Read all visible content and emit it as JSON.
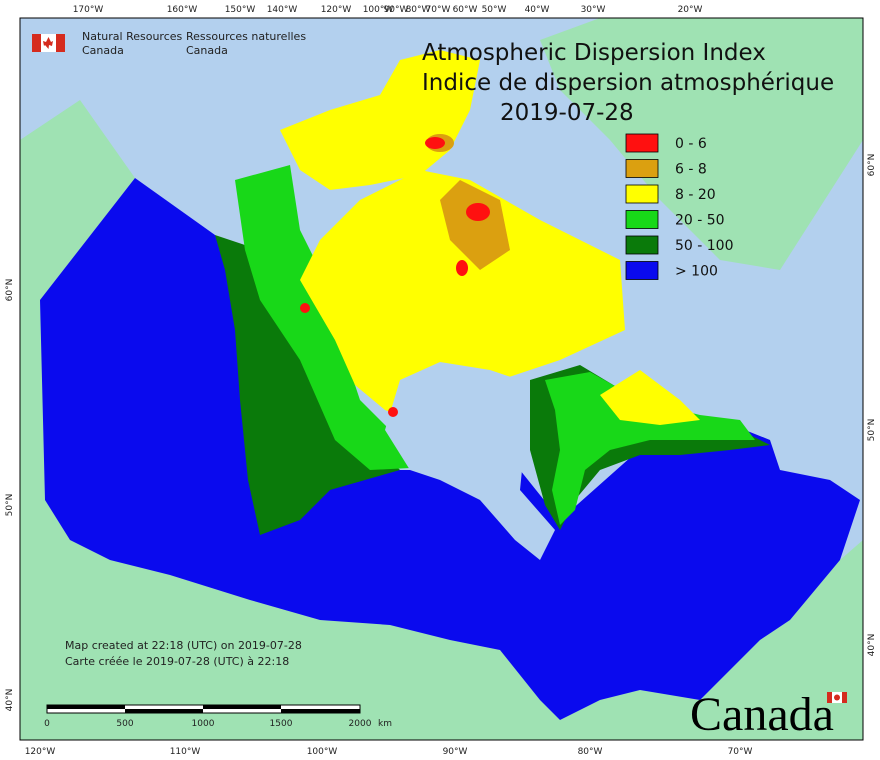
{
  "header": {
    "agency_en": [
      "Natural Resources",
      "Canada"
    ],
    "agency_fr": [
      "Ressources naturelles",
      "Canada"
    ]
  },
  "title": [
    "Atmospheric Dispersion Index",
    "Indice de dispersion atmosphérique"
  ],
  "date": "2019-07-28",
  "legend": [
    {
      "label": "0 - 6",
      "color": "#ff1010"
    },
    {
      "label": "6 - 8",
      "color": "#dba010"
    },
    {
      "label": "8 - 20",
      "color": "#ffff00"
    },
    {
      "label": "20 - 50",
      "color": "#18d818"
    },
    {
      "label": "50 - 100",
      "color": "#0a7a0a"
    },
    {
      "label": "> 100",
      "color": "#0a0aee"
    }
  ],
  "top_longitudes": [
    "170°W",
    "160°W",
    "150°W",
    "140°W",
    "120°W",
    "100°W",
    "90°W",
    "80°W",
    "70°W",
    "60°W",
    "50°W",
    "40°W",
    "30°W",
    "20°W"
  ],
  "bottom_longitudes": [
    "120°W",
    "110°W",
    "100°W",
    "90°W",
    "80°W",
    "70°W"
  ],
  "left_latitudes": [
    "60°N",
    "50°N",
    "40°N"
  ],
  "right_latitudes": [
    "60°N",
    "50°N",
    "40°N"
  ],
  "notes": [
    "Map created at 22:18 (UTC) on 2019-07-28",
    "Carte créée le 2019-07-28 (UTC) à 22:18"
  ],
  "scale": {
    "labels": [
      "0",
      "500",
      "1000",
      "1500",
      "2000"
    ],
    "unit": "km"
  },
  "wordmark": "Canada"
}
